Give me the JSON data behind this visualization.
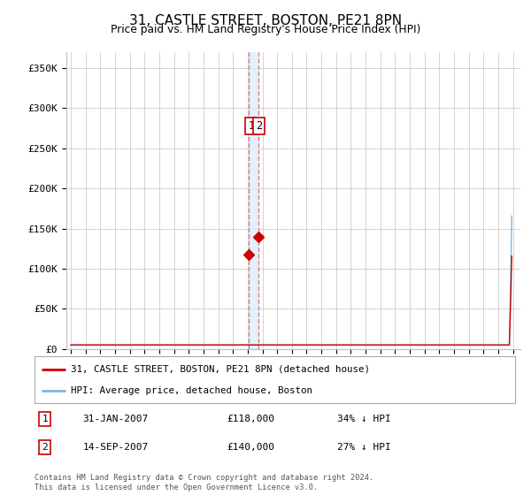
{
  "title": "31, CASTLE STREET, BOSTON, PE21 8PN",
  "subtitle": "Price paid vs. HM Land Registry's House Price Index (HPI)",
  "title_fontsize": 11,
  "subtitle_fontsize": 9,
  "ylabel_ticks": [
    "£0",
    "£50K",
    "£100K",
    "£150K",
    "£200K",
    "£250K",
    "£300K",
    "£350K"
  ],
  "ytick_vals": [
    0,
    50000,
    100000,
    150000,
    200000,
    250000,
    300000,
    350000
  ],
  "ylim": [
    0,
    370000
  ],
  "xlim_start": 1994.7,
  "xlim_end": 2025.5,
  "hpi_color": "#7ab8e8",
  "price_color": "#cc0000",
  "dashed_line_color": "#e08080",
  "shaded_color": "#ddeeff",
  "grid_color": "#cccccc",
  "bg_color": "#ffffff",
  "legend_items": [
    {
      "label": "31, CASTLE STREET, BOSTON, PE21 8PN (detached house)",
      "color": "#cc0000"
    },
    {
      "label": "HPI: Average price, detached house, Boston",
      "color": "#7ab8e8"
    }
  ],
  "sale_date1": 2007.083,
  "sale_price1": 118000,
  "sale_date2": 2007.708,
  "sale_price2": 140000,
  "footnote": "Contains HM Land Registry data © Crown copyright and database right 2024.\nThis data is licensed under the Open Government Licence v3.0.",
  "table_rows": [
    {
      "num": "1",
      "date": "31-JAN-2007",
      "price": "£118,000",
      "pct": "34% ↓ HPI"
    },
    {
      "num": "2",
      "date": "14-SEP-2007",
      "price": "£140,000",
      "pct": "27% ↓ HPI"
    }
  ]
}
